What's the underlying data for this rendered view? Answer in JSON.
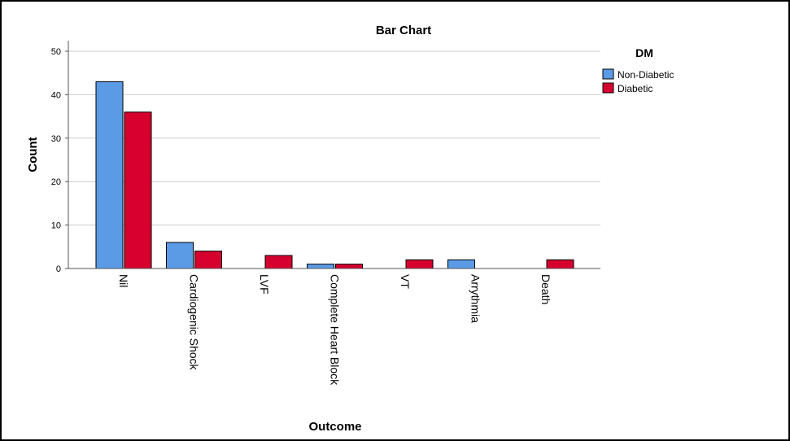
{
  "chart_data": {
    "type": "bar",
    "title": "Bar Chart",
    "xlabel": "Outcome",
    "ylabel": "Count",
    "ylim": [
      0,
      52
    ],
    "yticks": [
      0,
      10,
      20,
      30,
      40,
      50
    ],
    "grid": true,
    "categories": [
      "Nil",
      "Cardiogenic Shock",
      "LVF",
      "Complete Heart Block",
      "VT",
      "Arrythmia",
      "Death"
    ],
    "series": [
      {
        "name": "Non-Diabetic",
        "color": "#5B9BE6",
        "values": [
          43,
          6,
          0,
          1,
          0,
          2,
          0
        ]
      },
      {
        "name": "Diabetic",
        "color": "#D6002F",
        "values": [
          36,
          4,
          3,
          1,
          2,
          0,
          2
        ]
      }
    ],
    "legend": {
      "title": "DM",
      "position": "top-right"
    }
  }
}
